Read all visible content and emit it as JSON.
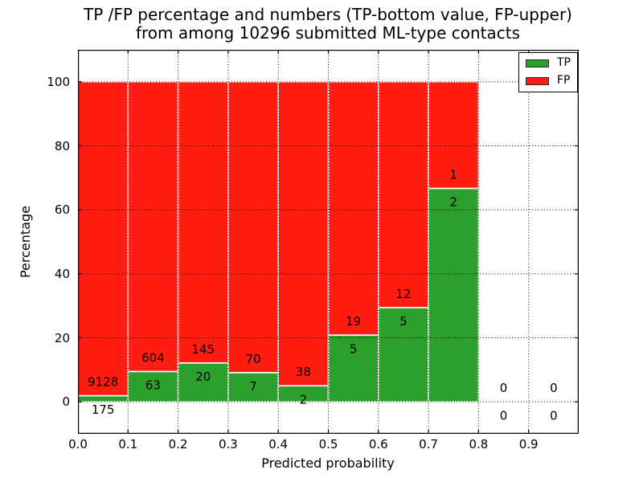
{
  "chart_data": {
    "type": "bar",
    "stacked": true,
    "title": "TP /FP percentage and numbers (TP-bottom value, FP-upper)\nfrom among 10296 submitted ML-type contacts",
    "title_line1": "TP /FP percentage and numbers (TP-bottom value, FP-upper)",
    "title_line2": "from among 10296 submitted ML-type contacts",
    "xlabel": "Predicted probability",
    "ylabel": "Percentage",
    "total_contacts": 10296,
    "xlim": [
      0.0,
      1.0
    ],
    "ylim": [
      -10,
      110
    ],
    "grid": true,
    "bin_width": 0.1,
    "bin_starts": [
      0.0,
      0.1,
      0.2,
      0.3,
      0.4,
      0.5,
      0.6,
      0.7,
      0.8,
      0.9
    ],
    "xtick_labels": [
      "0.0",
      "0.1",
      "0.2",
      "0.3",
      "0.4",
      "0.5",
      "0.6",
      "0.7",
      "0.8",
      "0.9"
    ],
    "ytick_values": [
      0,
      20,
      40,
      60,
      80,
      100
    ],
    "ytick_labels": [
      "0",
      "20",
      "40",
      "60",
      "80",
      "100"
    ],
    "series": [
      {
        "name": "TP",
        "color": "#2ca02c",
        "counts": [
          175,
          63,
          20,
          7,
          2,
          5,
          5,
          2,
          0,
          0
        ]
      },
      {
        "name": "FP",
        "color": "#ff1d12",
        "counts": [
          9128,
          604,
          145,
          70,
          38,
          19,
          12,
          1,
          0,
          0
        ]
      }
    ],
    "tp_percent": [
      1.88,
      9.45,
      12.12,
      9.09,
      5.0,
      20.83,
      29.41,
      66.67,
      0,
      0
    ],
    "annotations": {
      "fp_labels": [
        "9128",
        "604",
        "145",
        "70",
        "38",
        "19",
        "12",
        "1",
        "0",
        "0"
      ],
      "tp_labels": [
        "175",
        "63",
        "20",
        "7",
        "2",
        "5",
        "5",
        "2",
        "0",
        "0"
      ]
    },
    "legend": {
      "position": "upper right",
      "entries": [
        {
          "label": "TP",
          "color": "#2ca02c"
        },
        {
          "label": "FP",
          "color": "#ff1d12"
        }
      ]
    },
    "colors": {
      "axis": "#000000",
      "grid": "#000000",
      "bar_edge": "#ffffff",
      "text": "#000000"
    }
  }
}
